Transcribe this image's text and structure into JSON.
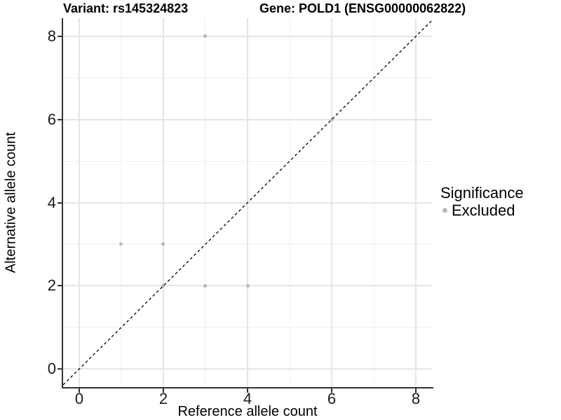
{
  "chart_data": {
    "type": "scatter",
    "title_left": "Variant: rs145324823",
    "title_right": "Gene: POLD1 (ENSG00000062822)",
    "xlabel": "Reference allele count",
    "ylabel": "Alternative allele count",
    "xlim": [
      -0.383,
      8.383
    ],
    "ylim": [
      -0.436,
      8.436
    ],
    "x_major_ticks": [
      0,
      2,
      4,
      6,
      8
    ],
    "y_major_ticks": [
      0,
      2,
      4,
      6,
      8
    ],
    "x_minor_ticks": [
      1,
      3,
      5,
      7
    ],
    "y_minor_ticks": [
      1,
      3,
      5,
      7
    ],
    "grid": true,
    "legend_position": "right",
    "series": [
      {
        "name": "Excluded",
        "color": "#b9b9b9",
        "points": [
          {
            "x": 1,
            "y": 3
          },
          {
            "x": 2,
            "y": 2
          },
          {
            "x": 2,
            "y": 3
          },
          {
            "x": 3,
            "y": 2
          },
          {
            "x": 3,
            "y": 8
          },
          {
            "x": 4,
            "y": 2
          },
          {
            "x": 6,
            "y": 6
          }
        ]
      }
    ],
    "identity_line": {
      "type": "y=x",
      "style": "dashed",
      "color": "#000000"
    },
    "legend": {
      "title": "Significance",
      "items": [
        {
          "label": "Excluded",
          "color": "#b9b9b9"
        }
      ]
    }
  },
  "colors": {
    "background": "#ffffff",
    "point": "#b9b9b9",
    "grid_major": "#e5e5e5",
    "grid_minor": "#f0f0f0",
    "axis_line": "#333333",
    "tick_text": "#1a1a1a",
    "diagonal_line": "#000000"
  }
}
